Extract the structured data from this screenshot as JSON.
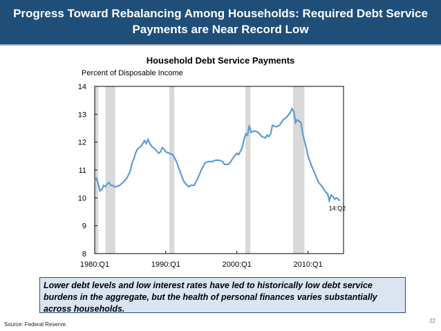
{
  "header": {
    "line1": "Progress Toward Rebalancing Among Households: Required Debt Service",
    "line2": "Payments are Near Record Low"
  },
  "callout_text": "Lower debt levels and low interest rates have led to historically low debt service burdens in the aggregate, but the health of personal finances varies substantially across households.",
  "source": "Source: Federal Reserve.",
  "page_number": "22",
  "colors": {
    "header_bg": "#1f4e79",
    "line": "#5b9bd5",
    "recession": "#d9d9d9",
    "callout_bg": "#dbe5f1"
  },
  "chart_data": {
    "type": "line",
    "title": "Household Debt Service Payments",
    "ylabel": "Percent of Disposable Income",
    "xlabel": "",
    "ylim": [
      8,
      14
    ],
    "yticks": [
      8,
      9,
      10,
      11,
      12,
      13,
      14
    ],
    "xlim": [
      1980.0,
      2015.0
    ],
    "xticks": [
      {
        "label": "1980:Q1",
        "value": 1980.0
      },
      {
        "label": "1990:Q1",
        "value": 1990.0
      },
      {
        "label": "2000:Q1",
        "value": 2000.0
      },
      {
        "label": "2010:Q1",
        "value": 2010.0
      }
    ],
    "recessions": [
      [
        1980.0,
        1980.5
      ],
      [
        1981.5,
        1982.9
      ],
      [
        1990.5,
        1991.2
      ],
      [
        2001.2,
        2001.9
      ],
      [
        2007.9,
        2009.5
      ]
    ],
    "annotation": "14:Q2",
    "series": [
      {
        "values": [
          [
            1980.0,
            10.6
          ],
          [
            1980.25,
            10.7
          ],
          [
            1980.5,
            10.5
          ],
          [
            1980.75,
            10.25
          ],
          [
            1981.0,
            10.3
          ],
          [
            1981.25,
            10.45
          ],
          [
            1981.5,
            10.4
          ],
          [
            1981.75,
            10.5
          ],
          [
            1982.0,
            10.55
          ],
          [
            1982.25,
            10.45
          ],
          [
            1982.5,
            10.45
          ],
          [
            1982.75,
            10.4
          ],
          [
            1983.0,
            10.4
          ],
          [
            1983.5,
            10.45
          ],
          [
            1984.0,
            10.55
          ],
          [
            1984.5,
            10.7
          ],
          [
            1985.0,
            10.95
          ],
          [
            1985.25,
            11.25
          ],
          [
            1985.5,
            11.4
          ],
          [
            1985.75,
            11.6
          ],
          [
            1986.0,
            11.75
          ],
          [
            1986.5,
            11.85
          ],
          [
            1987.0,
            12.05
          ],
          [
            1987.25,
            11.95
          ],
          [
            1987.5,
            12.1
          ],
          [
            1987.75,
            11.95
          ],
          [
            1988.0,
            11.85
          ],
          [
            1988.5,
            11.75
          ],
          [
            1989.0,
            11.6
          ],
          [
            1989.25,
            11.65
          ],
          [
            1989.5,
            11.8
          ],
          [
            1989.75,
            11.75
          ],
          [
            1990.0,
            11.65
          ],
          [
            1990.5,
            11.6
          ],
          [
            1991.0,
            11.55
          ],
          [
            1991.5,
            11.3
          ],
          [
            1992.0,
            10.95
          ],
          [
            1992.5,
            10.6
          ],
          [
            1993.0,
            10.45
          ],
          [
            1993.25,
            10.4
          ],
          [
            1993.5,
            10.45
          ],
          [
            1994.0,
            10.45
          ],
          [
            1994.5,
            10.7
          ],
          [
            1995.0,
            11.0
          ],
          [
            1995.5,
            11.25
          ],
          [
            1996.0,
            11.3
          ],
          [
            1996.5,
            11.3
          ],
          [
            1997.0,
            11.35
          ],
          [
            1997.5,
            11.35
          ],
          [
            1998.0,
            11.3
          ],
          [
            1998.25,
            11.2
          ],
          [
            1998.75,
            11.2
          ],
          [
            1999.0,
            11.25
          ],
          [
            1999.5,
            11.45
          ],
          [
            2000.0,
            11.6
          ],
          [
            2000.25,
            11.55
          ],
          [
            2000.75,
            11.8
          ],
          [
            2001.0,
            12.1
          ],
          [
            2001.25,
            12.3
          ],
          [
            2001.5,
            12.25
          ],
          [
            2001.75,
            12.6
          ],
          [
            2002.0,
            12.35
          ],
          [
            2002.5,
            12.4
          ],
          [
            2003.0,
            12.35
          ],
          [
            2003.5,
            12.2
          ],
          [
            2004.0,
            12.15
          ],
          [
            2004.25,
            12.25
          ],
          [
            2004.5,
            12.2
          ],
          [
            2004.75,
            12.3
          ],
          [
            2005.0,
            12.6
          ],
          [
            2005.5,
            12.55
          ],
          [
            2006.0,
            12.6
          ],
          [
            2006.5,
            12.8
          ],
          [
            2007.0,
            12.9
          ],
          [
            2007.5,
            13.05
          ],
          [
            2007.75,
            13.2
          ],
          [
            2008.0,
            13.1
          ],
          [
            2008.25,
            12.7
          ],
          [
            2008.5,
            12.8
          ],
          [
            2009.0,
            12.7
          ],
          [
            2009.25,
            12.3
          ],
          [
            2009.5,
            12.05
          ],
          [
            2009.75,
            11.8
          ],
          [
            2010.0,
            11.5
          ],
          [
            2010.5,
            11.15
          ],
          [
            2011.0,
            10.85
          ],
          [
            2011.5,
            10.55
          ],
          [
            2012.0,
            10.4
          ],
          [
            2012.5,
            10.2
          ],
          [
            2012.75,
            10.15
          ],
          [
            2013.0,
            9.9
          ],
          [
            2013.25,
            10.1
          ],
          [
            2013.5,
            10.05
          ],
          [
            2013.75,
            9.95
          ],
          [
            2014.0,
            10.0
          ],
          [
            2014.25,
            9.95
          ],
          [
            2014.5,
            9.9
          ]
        ]
      }
    ]
  }
}
